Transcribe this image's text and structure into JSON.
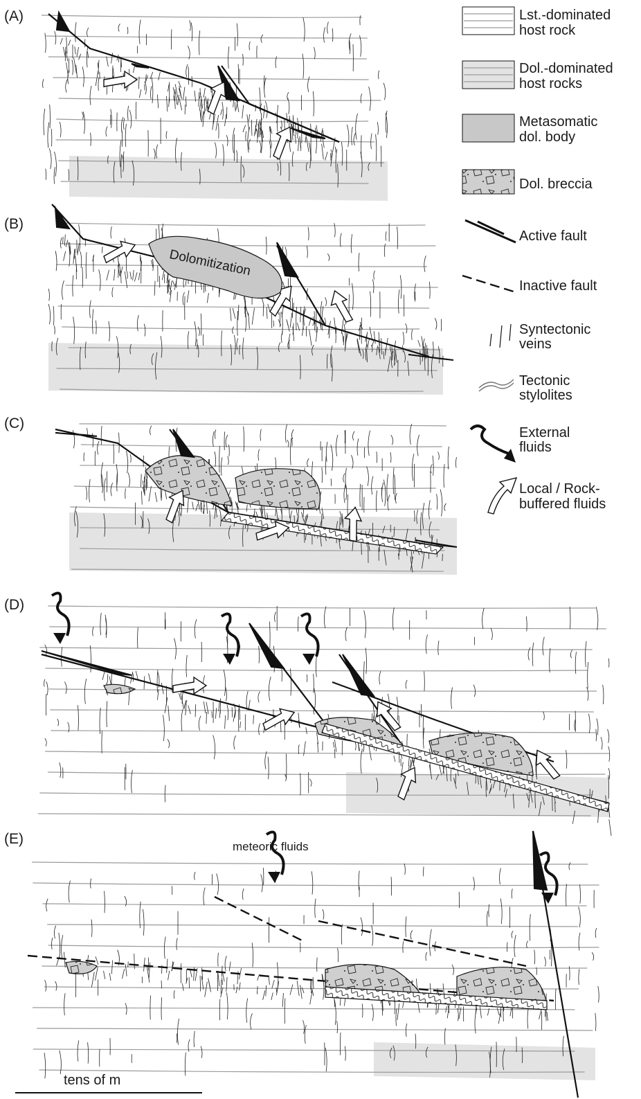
{
  "panels": [
    {
      "label": "(A)"
    },
    {
      "label": "(B)",
      "annotation": "Dolomitization"
    },
    {
      "label": "(C)"
    },
    {
      "label": "(D)"
    },
    {
      "label": "(E)",
      "annotation": "meteoric fluids"
    }
  ],
  "scale_bar": {
    "label": "tens of m"
  },
  "legend": [
    {
      "lines": [
        "Lst.-dominated",
        "host rock"
      ]
    },
    {
      "lines": [
        "Dol.-dominated",
        "host rocks"
      ]
    },
    {
      "lines": [
        "Metasomatic",
        "dol. body"
      ]
    },
    {
      "lines": [
        "Dol. breccia"
      ]
    },
    {
      "lines": [
        "Active fault"
      ]
    },
    {
      "lines": [
        "Inactive fault"
      ]
    },
    {
      "lines": [
        "Syntectonic",
        "veins"
      ]
    },
    {
      "lines": [
        "Tectonic",
        "stylolites"
      ]
    },
    {
      "lines": [
        "External",
        "fluids"
      ]
    },
    {
      "lines": [
        "Local / Rock-",
        "buffered fluids"
      ]
    }
  ]
}
